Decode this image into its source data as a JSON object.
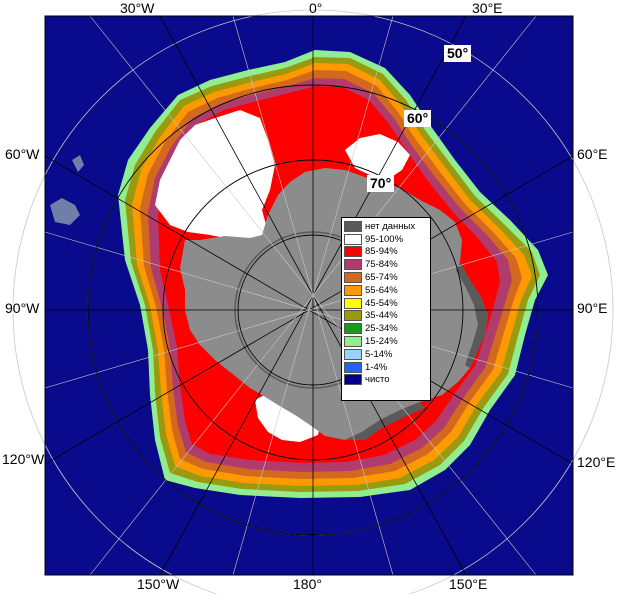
{
  "map": {
    "colors": {
      "ocean": "#0a0a8c",
      "land": "#8c8c8c",
      "land_dark": "#5a5a5a",
      "ice_95_100": "#ffffff",
      "ice_85_94": "#ff0000",
      "ice_75_84": "#b03c6e",
      "ice_65_74": "#d2691e",
      "ice_55_64": "#ff9900",
      "ice_45_54": "#ffff00",
      "ice_35_44": "#9a9a10",
      "ice_25_34": "#1a9a1a",
      "ice_15_24": "#90ee90",
      "ice_5_14": "#9bd1ff",
      "ice_1_4": "#1e64ff",
      "clear": "#00008b"
    },
    "top_labels": [
      "30°W",
      "0°",
      "30°E"
    ],
    "bottom_labels": [
      "150°W",
      "180°",
      "150°E"
    ],
    "left_labels": [
      "60°W",
      "90°W",
      "120°W"
    ],
    "right_labels": [
      "60°E",
      "90°E",
      "120°E"
    ],
    "lat_labels": [
      "50°",
      "60°",
      "70°"
    ]
  },
  "legend": {
    "items": [
      {
        "label": "нет данных",
        "color": "#5a5a5a"
      },
      {
        "label": "95-100%",
        "color": "#ffffff"
      },
      {
        "label": "85-94%",
        "color": "#ff0000"
      },
      {
        "label": "75-84%",
        "color": "#b03c6e"
      },
      {
        "label": "65-74%",
        "color": "#d2691e"
      },
      {
        "label": "55-64%",
        "color": "#ff9900"
      },
      {
        "label": "45-54%",
        "color": "#ffff00"
      },
      {
        "label": "35-44%",
        "color": "#9a9a10"
      },
      {
        "label": "25-34%",
        "color": "#1a9a1a"
      },
      {
        "label": "15-24%",
        "color": "#90ee90"
      },
      {
        "label": "5-14%",
        "color": "#9bd1ff"
      },
      {
        "label": "1-4%",
        "color": "#1e64ff"
      },
      {
        "label": "чисто",
        "color": "#00008b"
      }
    ]
  }
}
